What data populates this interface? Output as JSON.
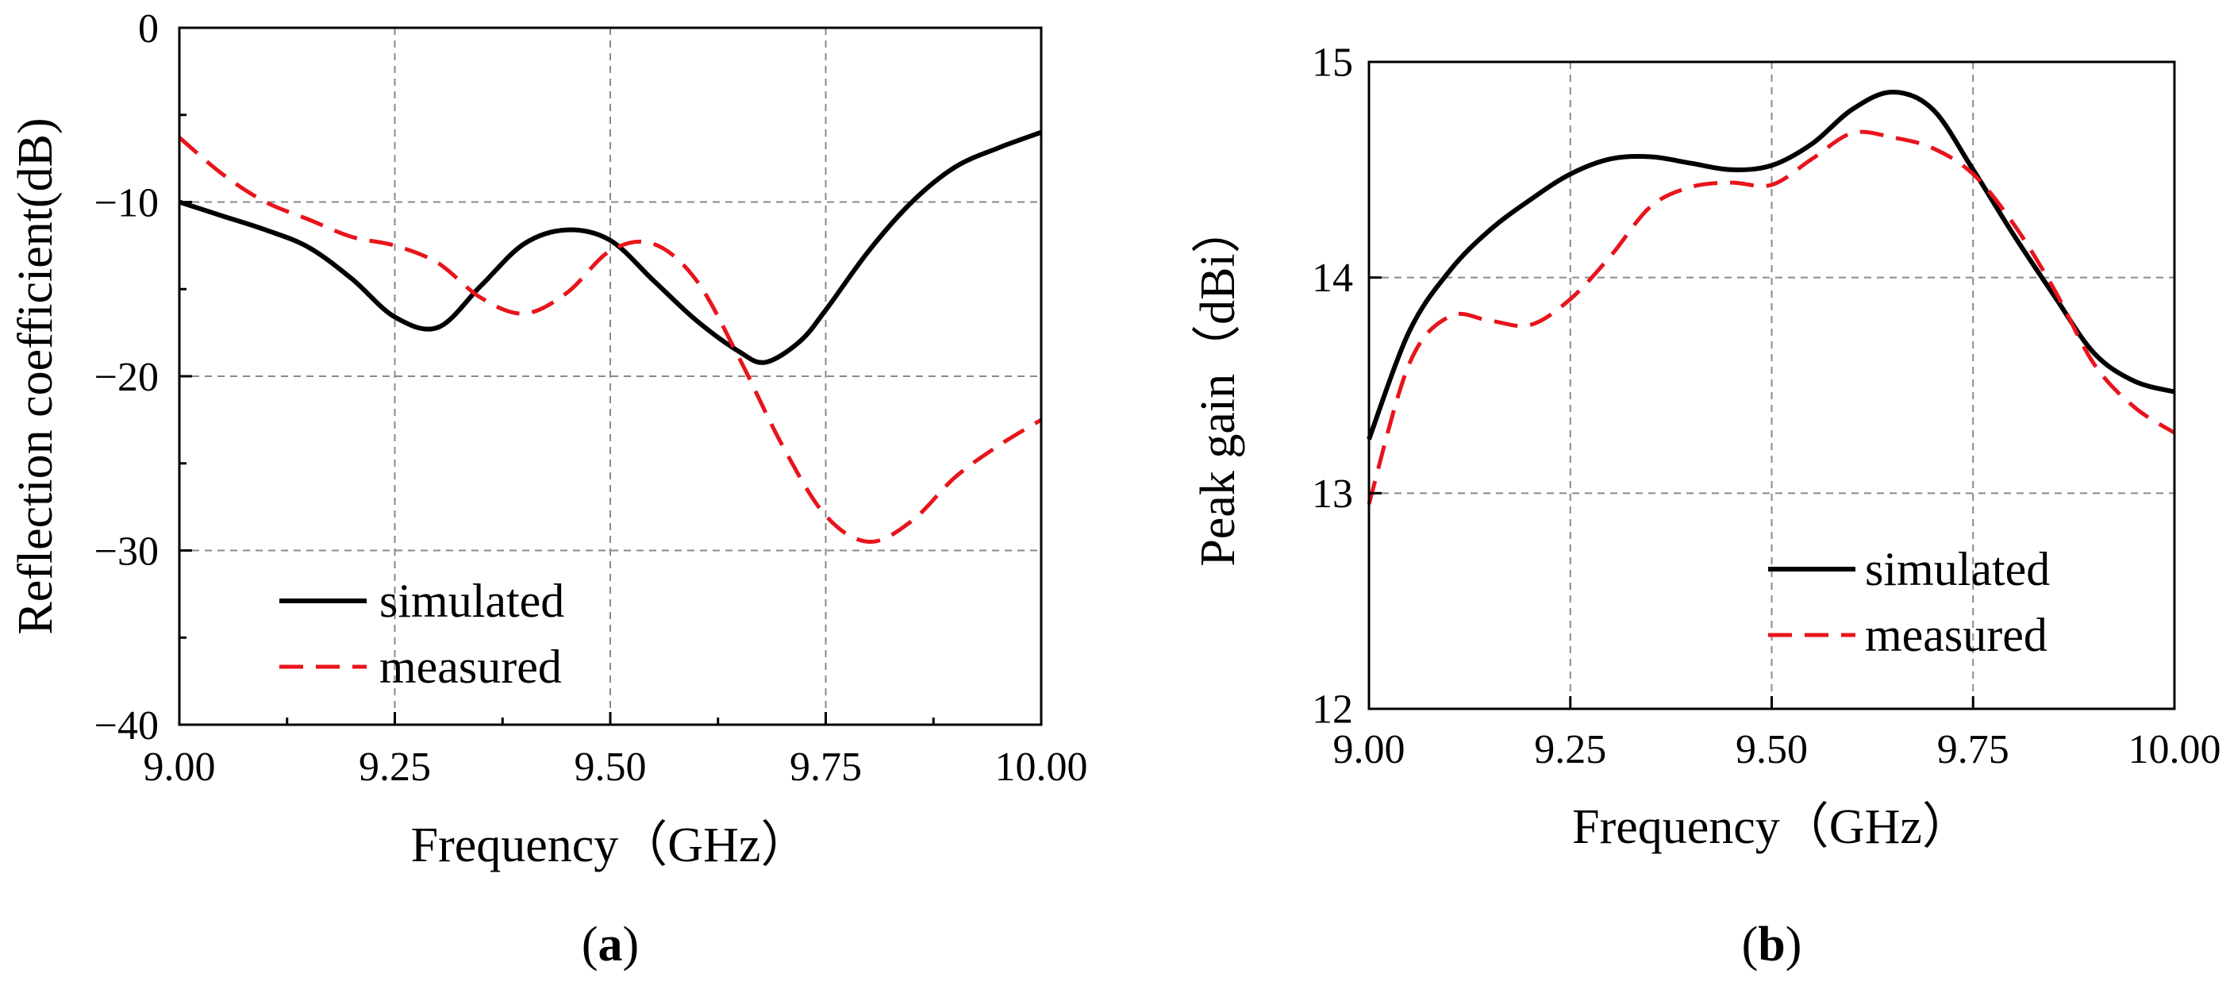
{
  "chart_data": [
    {
      "type": "line",
      "panel_label": "a",
      "title": "",
      "xlabel": "Frequency（GHz）",
      "ylabel": "Reflection coefficient(dB)",
      "xlim": [
        9.0,
        10.0
      ],
      "ylim": [
        -40,
        0
      ],
      "xticks": [
        9.0,
        9.25,
        9.5,
        9.75,
        10.0
      ],
      "xtick_labels": [
        "9.00",
        "9.25",
        "9.50",
        "9.75",
        "10.00"
      ],
      "yticks": [
        0,
        -10,
        -20,
        -30,
        -40
      ],
      "ytick_labels": [
        "0",
        "−10",
        "−20",
        "−30",
        "−40"
      ],
      "grid": true,
      "legend_position": "lower-left",
      "series": [
        {
          "name": "simulated",
          "color": "#000000",
          "style": "solid",
          "x": [
            9.0,
            9.05,
            9.1,
            9.15,
            9.2,
            9.25,
            9.3,
            9.35,
            9.4,
            9.45,
            9.5,
            9.55,
            9.6,
            9.65,
            9.68,
            9.72,
            9.75,
            9.8,
            9.85,
            9.9,
            9.95,
            10.0
          ],
          "y": [
            -10.0,
            -10.8,
            -11.6,
            -12.6,
            -14.4,
            -16.6,
            -17.2,
            -14.8,
            -12.4,
            -11.6,
            -12.2,
            -14.5,
            -16.8,
            -18.6,
            -19.2,
            -18.0,
            -16.2,
            -12.8,
            -10.0,
            -8.0,
            -6.9,
            -6.0
          ]
        },
        {
          "name": "measured",
          "color": "#e8141c",
          "style": "dashed",
          "x": [
            9.0,
            9.05,
            9.1,
            9.15,
            9.2,
            9.25,
            9.3,
            9.35,
            9.4,
            9.45,
            9.5,
            9.55,
            9.6,
            9.65,
            9.7,
            9.75,
            9.8,
            9.85,
            9.9,
            9.95,
            10.0
          ],
          "y": [
            -6.3,
            -8.4,
            -10.0,
            -11.0,
            -12.0,
            -12.5,
            -13.5,
            -15.5,
            -16.4,
            -15.2,
            -12.8,
            -12.4,
            -14.5,
            -19.0,
            -24.0,
            -28.0,
            -29.5,
            -28.3,
            -25.8,
            -24.0,
            -22.5
          ]
        }
      ]
    },
    {
      "type": "line",
      "panel_label": "b",
      "title": "",
      "xlabel": "Frequency（GHz）",
      "ylabel": "Peak gain（dBi）",
      "xlim": [
        9.0,
        10.0
      ],
      "ylim": [
        12,
        15
      ],
      "xticks": [
        9.0,
        9.25,
        9.5,
        9.75,
        10.0
      ],
      "xtick_labels": [
        "9.00",
        "9.25",
        "9.50",
        "9.75",
        "10.00"
      ],
      "yticks": [
        12,
        13,
        14,
        15
      ],
      "ytick_labels": [
        "12",
        "13",
        "14",
        "15"
      ],
      "grid": true,
      "legend_position": "lower-right",
      "series": [
        {
          "name": "simulated",
          "color": "#000000",
          "style": "solid",
          "x": [
            9.0,
            9.05,
            9.1,
            9.15,
            9.2,
            9.25,
            9.3,
            9.35,
            9.4,
            9.45,
            9.5,
            9.55,
            9.6,
            9.65,
            9.7,
            9.75,
            9.8,
            9.85,
            9.9,
            9.95,
            10.0
          ],
          "y": [
            13.25,
            13.75,
            14.03,
            14.22,
            14.36,
            14.48,
            14.55,
            14.56,
            14.53,
            14.5,
            14.52,
            14.62,
            14.78,
            14.86,
            14.78,
            14.5,
            14.2,
            13.92,
            13.65,
            13.52,
            13.47
          ]
        },
        {
          "name": "measured",
          "color": "#e8141c",
          "style": "dashed",
          "x": [
            9.0,
            9.05,
            9.1,
            9.15,
            9.2,
            9.25,
            9.3,
            9.35,
            9.4,
            9.45,
            9.5,
            9.55,
            9.6,
            9.65,
            9.7,
            9.75,
            9.8,
            9.85,
            9.9,
            9.95,
            10.0
          ],
          "y": [
            12.95,
            13.6,
            13.82,
            13.8,
            13.78,
            13.9,
            14.1,
            14.33,
            14.42,
            14.44,
            14.43,
            14.55,
            14.67,
            14.65,
            14.6,
            14.48,
            14.25,
            13.95,
            13.6,
            13.4,
            13.28
          ]
        }
      ]
    }
  ]
}
